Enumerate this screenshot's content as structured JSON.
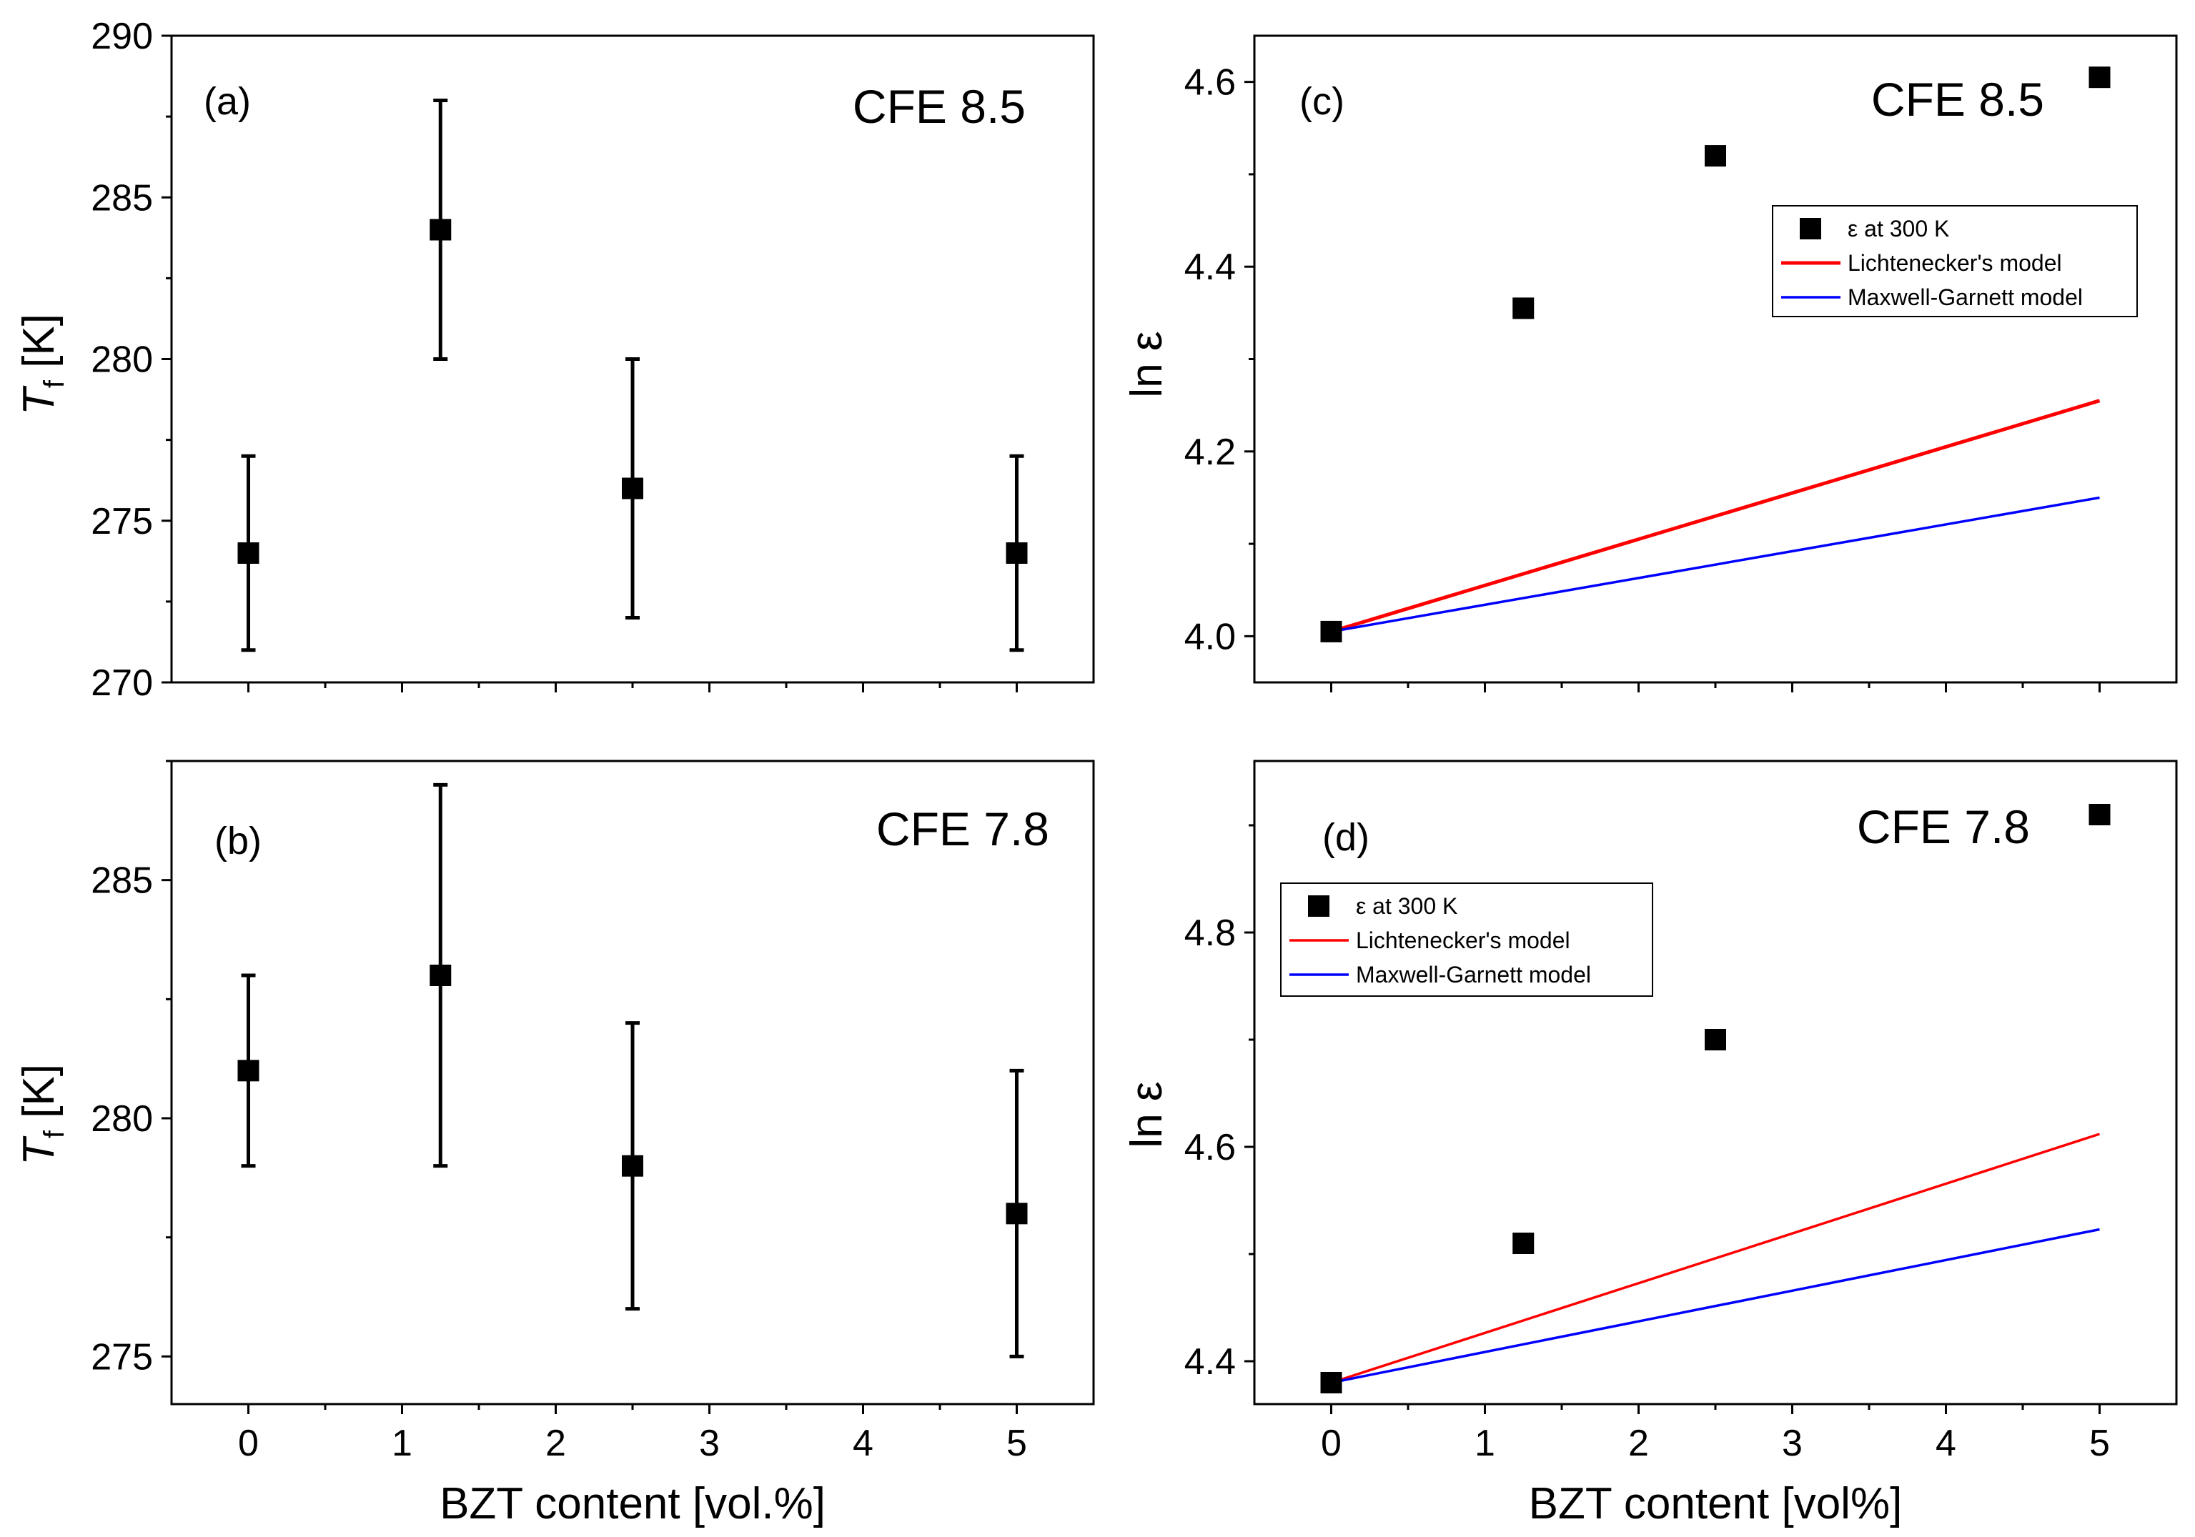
{
  "chart_data": [
    {
      "id": "a",
      "type": "scatter",
      "panel_label": "(a)",
      "sample": "CFE 8.5",
      "ylabel_main": "T",
      "ylabel_sub": "f",
      "ylabel_unit": " [K]",
      "xlabel": "",
      "xlim": [
        -0.5,
        5.5
      ],
      "ylim": [
        270,
        290
      ],
      "xticks": [
        0,
        1,
        2,
        3,
        4,
        5
      ],
      "xtick_labels": [],
      "yticks": [
        270,
        275,
        280,
        285,
        290
      ],
      "series": [
        {
          "name": "T_f",
          "marker": "square",
          "color": "#000000",
          "x": [
            0,
            1.25,
            2.5,
            5
          ],
          "y": [
            274,
            284,
            276,
            274
          ],
          "yerr": [
            3,
            4,
            4,
            3
          ]
        }
      ]
    },
    {
      "id": "b",
      "type": "scatter",
      "panel_label": "(b)",
      "sample": "CFE 7.8",
      "ylabel_main": "T",
      "ylabel_sub": "f",
      "ylabel_unit": " [K]",
      "xlabel": "BZT content [vol.%]",
      "xlim": [
        -0.5,
        5.5
      ],
      "ylim": [
        274,
        287.5
      ],
      "xticks": [
        0,
        1,
        2,
        3,
        4,
        5
      ],
      "xtick_labels": [
        "0",
        "1",
        "2",
        "3",
        "4",
        "5"
      ],
      "yticks": [
        275,
        280,
        285
      ],
      "series": [
        {
          "name": "T_f",
          "marker": "square",
          "color": "#000000",
          "x": [
            0,
            1.25,
            2.5,
            5
          ],
          "y": [
            281,
            283,
            279,
            278
          ],
          "yerr": [
            2,
            4,
            3,
            3
          ]
        }
      ]
    },
    {
      "id": "c",
      "type": "scatter",
      "panel_label": "(c)",
      "sample": "CFE 8.5",
      "ylabel_main": "ln ε",
      "xlabel": "",
      "xlim": [
        -0.5,
        5.5
      ],
      "ylim": [
        3.95,
        4.65
      ],
      "xticks": [
        0,
        1,
        2,
        3,
        4,
        5
      ],
      "xtick_labels": [],
      "yticks": [
        4.0,
        4.2,
        4.4,
        4.6
      ],
      "ytick_labels": [
        "4.0",
        "4.2",
        "4.4",
        "4.6"
      ],
      "legend": {
        "position": "upper-right",
        "entries": [
          "ε at 300 K",
          "Lichtenecker's model",
          "Maxwell-Garnett model"
        ]
      },
      "series": [
        {
          "name": "ε at 300 K",
          "marker": "square",
          "color": "#000000",
          "x": [
            0,
            1.25,
            2.5,
            5
          ],
          "y": [
            4.005,
            4.355,
            4.52,
            4.605
          ]
        },
        {
          "name": "Lichtenecker's model",
          "type": "line",
          "color": "#ff0000",
          "x": [
            0,
            5
          ],
          "y": [
            4.005,
            4.255
          ]
        },
        {
          "name": "Maxwell-Garnett model",
          "type": "line",
          "color": "#0000ff",
          "x": [
            0,
            5
          ],
          "y": [
            4.005,
            4.15
          ]
        }
      ]
    },
    {
      "id": "d",
      "type": "scatter",
      "panel_label": "(d)",
      "sample": "CFE 7.8",
      "ylabel_main": "ln ε",
      "xlabel": "BZT content [vol%]",
      "xlim": [
        -0.5,
        5.5
      ],
      "ylim": [
        4.36,
        4.96
      ],
      "xticks": [
        0,
        1,
        2,
        3,
        4,
        5
      ],
      "xtick_labels": [
        "0",
        "1",
        "2",
        "3",
        "4",
        "5"
      ],
      "yticks": [
        4.4,
        4.6,
        4.8
      ],
      "ytick_labels": [
        "4.4",
        "4.6",
        "4.8"
      ],
      "legend": {
        "position": "upper-left",
        "entries": [
          "ε at 300 K",
          "Lichtenecker's model",
          "Maxwell-Garnett model"
        ]
      },
      "series": [
        {
          "name": "ε at 300 K",
          "marker": "square",
          "color": "#000000",
          "x": [
            0,
            1.25,
            2.5,
            5
          ],
          "y": [
            4.38,
            4.51,
            4.7,
            4.91
          ]
        },
        {
          "name": "Lichtenecker's model",
          "type": "line",
          "color": "#ff0000",
          "x": [
            0,
            5
          ],
          "y": [
            4.38,
            4.612
          ]
        },
        {
          "name": "Maxwell-Garnett model",
          "type": "line",
          "color": "#0000ff",
          "x": [
            0,
            5
          ],
          "y": [
            4.38,
            4.523
          ]
        }
      ]
    }
  ]
}
